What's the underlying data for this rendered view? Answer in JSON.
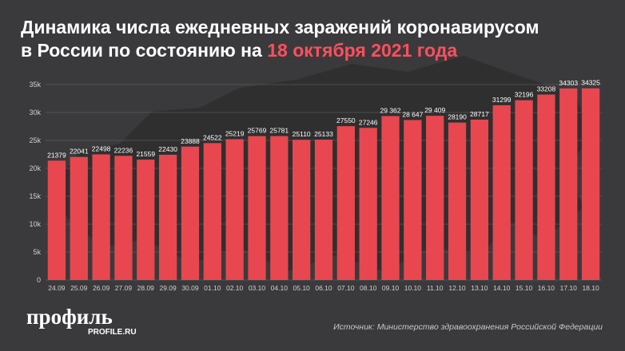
{
  "header": {
    "title_line1": "Динамика числа ежедневных заражений коронавирусом",
    "title_line2_prefix": "в России по состоянию на ",
    "title_line2_accent": "18 октября 2021 года"
  },
  "branding": {
    "logo": "профиль",
    "logo_site": "PROFILE.RU"
  },
  "footer": {
    "source": "Источник: Министерство здравоохранения Российской Федерации"
  },
  "colors": {
    "background": "#3a3a3c",
    "bar": "#e8474f",
    "accent": "#ff4f5e",
    "grid": "#6a6a6c",
    "text": "#ffffff"
  },
  "chart_data": {
    "type": "bar",
    "title": "Динамика числа ежедневных заражений коронавирусом в России по состоянию на 18 октября 2021 года",
    "categories": [
      "24.09",
      "25.09",
      "26.09",
      "27.09",
      "28.09",
      "29.09",
      "30.09",
      "01.10",
      "02.10",
      "03.10",
      "04.10",
      "05.10",
      "06.10",
      "07.10",
      "08.10",
      "09.10",
      "10.10",
      "11.10",
      "12.10",
      "13.10",
      "14.10",
      "15.10",
      "16.10",
      "17.10",
      "18.10"
    ],
    "values": [
      21379,
      22041,
      22498,
      22236,
      21559,
      22430,
      23888,
      24522,
      25219,
      25769,
      25781,
      25110,
      25133,
      27550,
      27246,
      29362,
      28647,
      29409,
      28190,
      28717,
      31299,
      32196,
      33208,
      34303,
      34325
    ],
    "value_labels": [
      "21379",
      "22041",
      "22498",
      "22236",
      "21559",
      "22430",
      "23888",
      "24522",
      "25219",
      "25769",
      "25781",
      "25110",
      "25133",
      "27550",
      "27246",
      "29 362",
      "28 647",
      "29 409",
      "28190",
      "28717",
      "31299",
      "32196",
      "33208",
      "34303",
      "34325"
    ],
    "ylim": [
      0,
      35000
    ],
    "yticks": [
      0,
      5000,
      10000,
      15000,
      20000,
      25000,
      30000,
      35000
    ],
    "ytick_labels": [
      "0",
      "5k",
      "10k",
      "15k",
      "20k",
      "25k",
      "30k",
      "35k"
    ],
    "grid": true
  }
}
